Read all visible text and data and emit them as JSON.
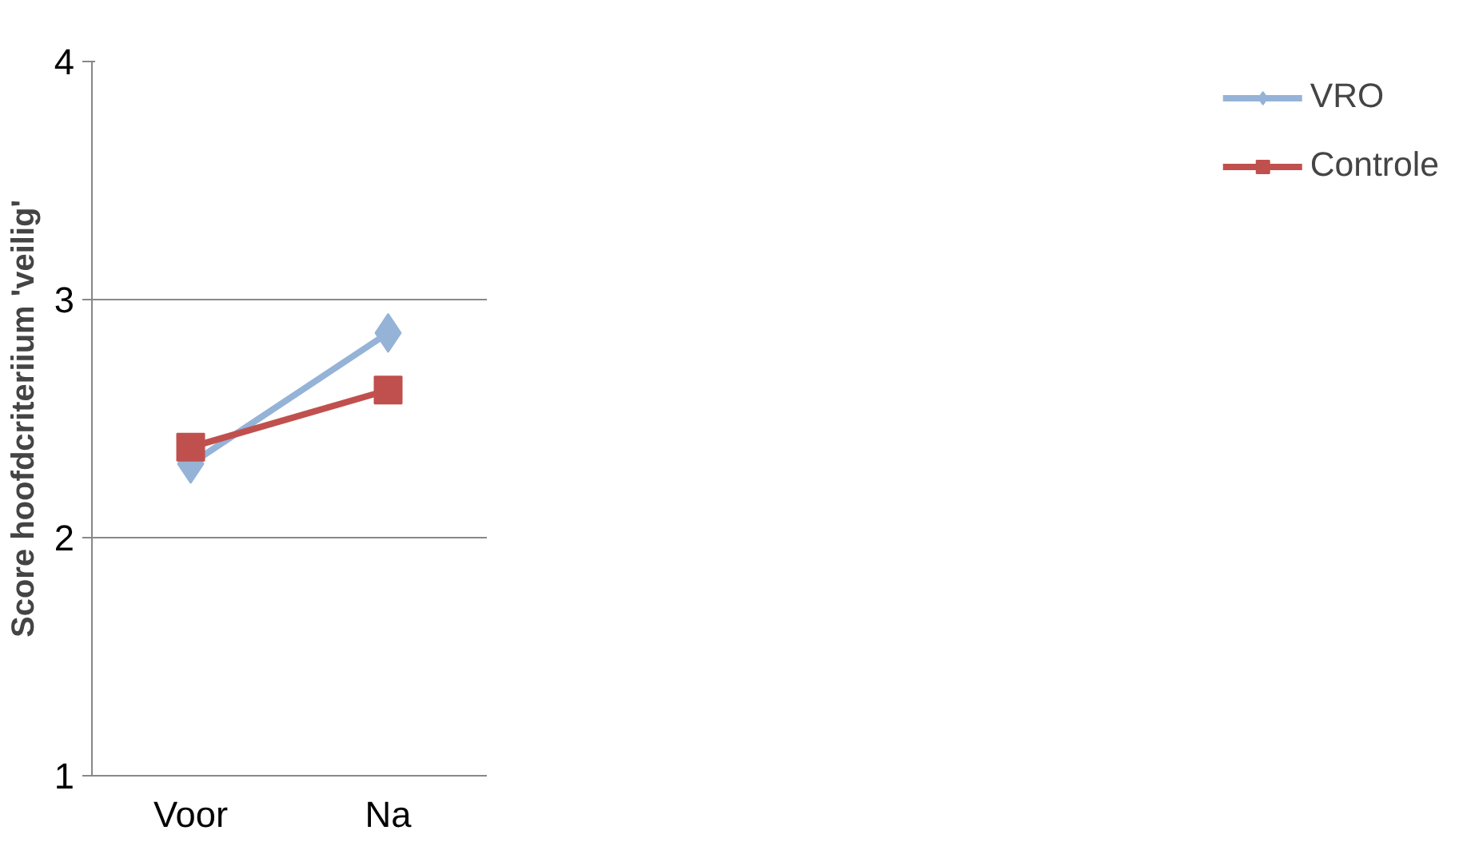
{
  "chart_data": {
    "type": "line",
    "ylabel": "Score hoofdcriteriium 'veilig'",
    "categories": [
      "Voor",
      "Na"
    ],
    "series": [
      {
        "name": "VRO",
        "color": "#95b3d7",
        "values": [
          2.31,
          2.86
        ],
        "marker": "diamond"
      },
      {
        "name": "Controle",
        "color": "#c0504d",
        "values": [
          2.38,
          2.62
        ],
        "marker": "square"
      }
    ],
    "ylim": [
      1,
      4
    ],
    "yticks": [
      1,
      2,
      3,
      4
    ],
    "grid": "y",
    "legend": "right",
    "line_style": "solid"
  }
}
